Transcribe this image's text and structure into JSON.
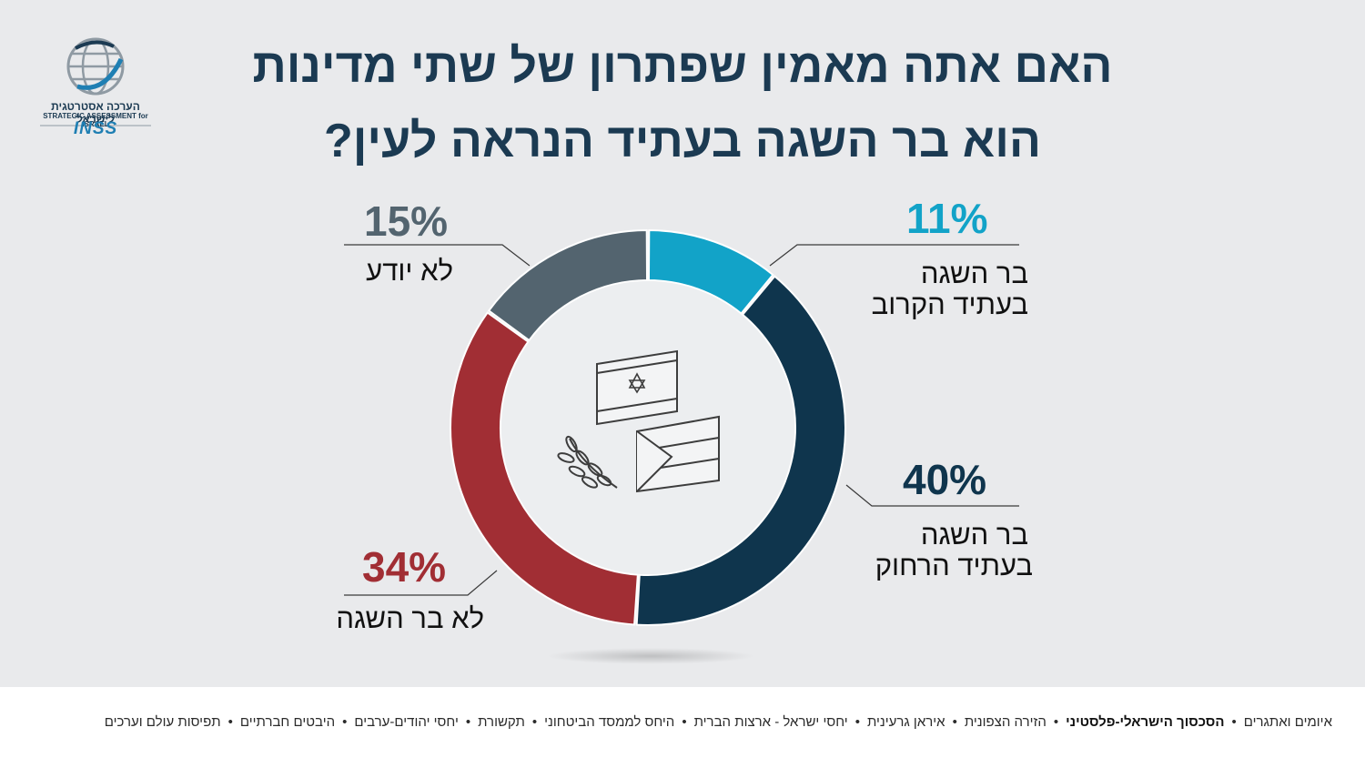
{
  "title": {
    "line1": "האם אתה מאמין שפתרון של שתי מדינות",
    "line2": "הוא בר השגה בעתיד הנראה לעין?"
  },
  "logo": {
    "org_hebrew": "הערכה אסטרטגית לישראל",
    "org_english": "STRATEGIC ASSESSMENT for ISRAEL",
    "brand": "INSS"
  },
  "chart_data": {
    "type": "pie",
    "donut": true,
    "slices": [
      {
        "label_line1": "בר השגה",
        "label_line2": "בעתיד הקרוב",
        "value": 11,
        "value_text": "11%",
        "color": "#12a3c8"
      },
      {
        "label_line1": "בר השגה",
        "label_line2": "בעתיד הרחוק",
        "value": 40,
        "value_text": "40%",
        "color": "#0f354d"
      },
      {
        "label_line1": "לא בר השגה",
        "label_line2": "",
        "value": 34,
        "value_text": "34%",
        "color": "#a12e34"
      },
      {
        "label_line1": "לא יודע",
        "label_line2": "",
        "value": 15,
        "value_text": "15%",
        "color": "#53646f"
      }
    ]
  },
  "center_icon": "israeli-and-palestinian-flags-with-olive-branch-icon",
  "footer": {
    "items": [
      {
        "label": "איומים ואתגרים",
        "active": false
      },
      {
        "label": "הסכסוך הישראלי-פלסטיני",
        "active": true
      },
      {
        "label": "הזירה הצפונית",
        "active": false
      },
      {
        "label": "איראן גרעינית",
        "active": false
      },
      {
        "label": "יחסי ישראל - ארצות הברית",
        "active": false
      },
      {
        "label": "היחס לממסד הביטחוני",
        "active": false
      },
      {
        "label": "תקשורת",
        "active": false
      },
      {
        "label": "יחסי יהודים-ערבים",
        "active": false
      },
      {
        "label": "היבטים חברתיים",
        "active": false
      },
      {
        "label": "תפיסות עולם וערכים",
        "active": false
      }
    ],
    "separator": "•"
  }
}
